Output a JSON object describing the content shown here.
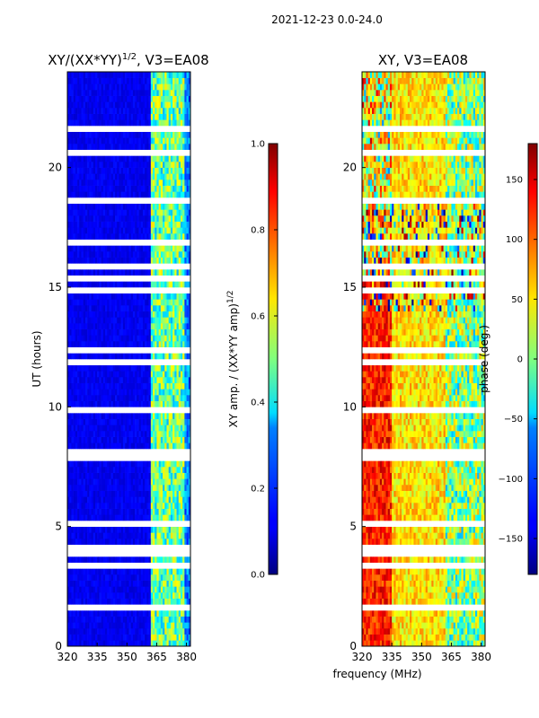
{
  "suptitle": "2021-12-23 0.0-24.0",
  "shared": {
    "xlabel": "frequency (MHz)",
    "ylabel": "UT (hours)"
  },
  "chart_data": [
    {
      "type": "heatmap",
      "title_text": "XY/(XX*YY)",
      "title_exponent": "1/2",
      "title_suffix": ", V3=EA08",
      "x_range_mhz": [
        320,
        382
      ],
      "y_range_hours": [
        0,
        24
      ],
      "x_ticks": [
        "320",
        "335",
        "350",
        "365",
        "380"
      ],
      "y_ticks": [
        "0",
        "5",
        "10",
        "15",
        "20"
      ],
      "colormap": "jet",
      "value_range": [
        0,
        1
      ],
      "colorbar": {
        "label_text": "XY amp. / (XX*YY amp)",
        "label_exponent": "1/2",
        "ticks": [
          "0.0",
          "0.2",
          "0.4",
          "0.6",
          "0.8",
          "1.0"
        ]
      }
    },
    {
      "type": "heatmap",
      "title_text": "XY, V3=EA08",
      "x_range_mhz": [
        320,
        382
      ],
      "y_range_hours": [
        0,
        24
      ],
      "x_ticks": [
        "320",
        "335",
        "350",
        "365",
        "380"
      ],
      "y_ticks": [
        "0",
        "5",
        "10",
        "15",
        "20"
      ],
      "colormap": "jet",
      "value_range": [
        -180,
        180
      ],
      "colorbar": {
        "label_text": "phase (deg.)",
        "ticks": [
          "−150",
          "−100",
          "−50",
          "0",
          "50",
          "100",
          "150"
        ]
      }
    }
  ],
  "colors": {
    "jet_low": "#00007f",
    "jet_high": "#7f0000",
    "gap": "#ffffff",
    "axis": "#000000"
  }
}
